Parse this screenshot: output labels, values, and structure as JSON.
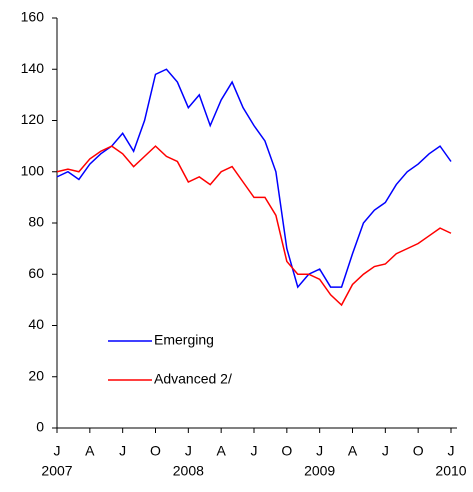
{
  "chart_data": {
    "type": "line",
    "x": [
      "2007-01",
      "2007-02",
      "2007-03",
      "2007-04",
      "2007-05",
      "2007-06",
      "2007-07",
      "2007-08",
      "2007-09",
      "2007-10",
      "2007-11",
      "2007-12",
      "2008-01",
      "2008-02",
      "2008-03",
      "2008-04",
      "2008-05",
      "2008-06",
      "2008-07",
      "2008-08",
      "2008-09",
      "2008-10",
      "2008-11",
      "2008-12",
      "2009-01",
      "2009-02",
      "2009-03",
      "2009-04",
      "2009-05",
      "2009-06",
      "2009-07",
      "2009-08",
      "2009-09",
      "2009-10",
      "2009-11",
      "2009-12",
      "2010-01"
    ],
    "series": [
      {
        "name": "Emerging",
        "color": "#0000ff",
        "values": [
          98,
          100,
          97,
          103,
          107,
          110,
          115,
          108,
          120,
          138,
          140,
          135,
          125,
          130,
          118,
          128,
          135,
          125,
          118,
          112,
          100,
          70,
          55,
          60,
          62,
          55,
          55,
          68,
          80,
          85,
          88,
          95,
          100,
          103,
          107,
          110,
          104
        ]
      },
      {
        "name": "Advanced 2/",
        "color": "#ff0000",
        "values": [
          100,
          101,
          100,
          105,
          108,
          110,
          107,
          102,
          106,
          110,
          106,
          104,
          96,
          98,
          95,
          100,
          102,
          96,
          90,
          90,
          83,
          65,
          60,
          60,
          58,
          52,
          48,
          56,
          60,
          63,
          64,
          68,
          70,
          72,
          75,
          78,
          76
        ]
      }
    ],
    "ylim": [
      0,
      160
    ],
    "yticks": [
      0,
      20,
      40,
      60,
      80,
      100,
      120,
      140,
      160
    ],
    "xticks": [
      {
        "value": "2007-01",
        "label": "J"
      },
      {
        "value": "2007-04",
        "label": "A"
      },
      {
        "value": "2007-07",
        "label": "J"
      },
      {
        "value": "2007-10",
        "label": "O"
      },
      {
        "value": "2008-01",
        "label": "J"
      },
      {
        "value": "2008-04",
        "label": "A"
      },
      {
        "value": "2008-07",
        "label": "J"
      },
      {
        "value": "2008-10",
        "label": "O"
      },
      {
        "value": "2009-01",
        "label": "J"
      },
      {
        "value": "2009-04",
        "label": "A"
      },
      {
        "value": "2009-07",
        "label": "J"
      },
      {
        "value": "2009-10",
        "label": "O"
      },
      {
        "value": "2010-01",
        "label": "J"
      }
    ],
    "xyears": [
      {
        "value": "2007-01",
        "label": "2007"
      },
      {
        "value": "2008-01",
        "label": "2008"
      },
      {
        "value": "2009-01",
        "label": "2009"
      },
      {
        "value": "2010-01",
        "label": "2010"
      }
    ]
  }
}
